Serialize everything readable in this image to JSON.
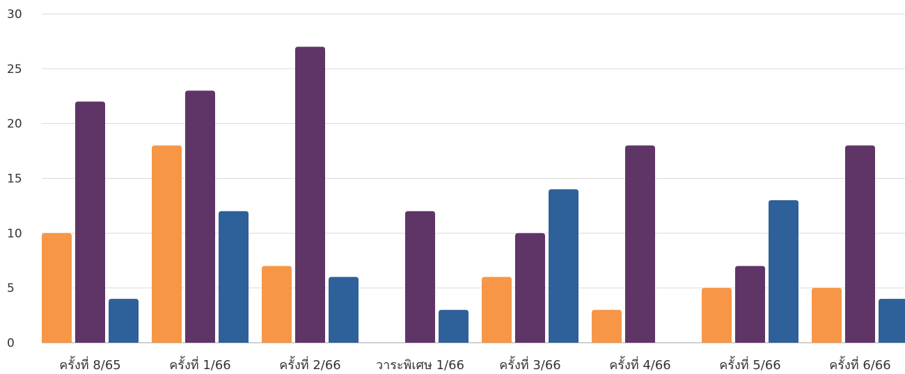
{
  "chart_data": {
    "type": "bar",
    "title": "",
    "xlabel": "",
    "ylabel": "",
    "ylim": [
      0,
      30
    ],
    "yticks": [
      0,
      5,
      10,
      15,
      20,
      25,
      30
    ],
    "grid": true,
    "legend": "none",
    "categories": [
      "ครั้งที่ 8/65",
      "ครั้งที่ 1/66",
      "ครั้งที่ 2/66",
      "วาระพิเศษ 1/66",
      "ครั้งที่ 3/66",
      "ครั้งที่ 4/66",
      "ครั้งที่ 5/66",
      "ครั้งที่ 6/66"
    ],
    "series": [
      {
        "color": "#F79646",
        "values": [
          10,
          18,
          7,
          0,
          6,
          3,
          5,
          5
        ]
      },
      {
        "color": "#5E3566",
        "values": [
          22,
          23,
          27,
          12,
          10,
          18,
          7,
          18
        ]
      },
      {
        "color": "#2E6099",
        "values": [
          4,
          12,
          6,
          3,
          14,
          0,
          13,
          4
        ]
      }
    ]
  }
}
